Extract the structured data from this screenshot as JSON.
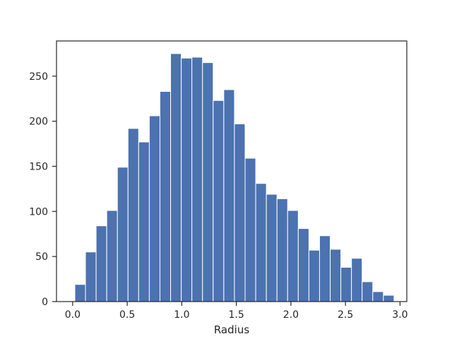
{
  "chart_data": {
    "type": "bar",
    "xlabel": "Radius",
    "ylabel": "",
    "xlim": [
      -0.148,
      3.062
    ],
    "ylim": [
      0,
      289
    ],
    "x_ticks": [
      0.0,
      0.5,
      1.0,
      1.5,
      2.0,
      2.5,
      3.0
    ],
    "x_tick_labels": [
      "0.0",
      "0.5",
      "1.0",
      "1.5",
      "2.0",
      "2.5",
      "3.0"
    ],
    "y_ticks": [
      0,
      50,
      100,
      150,
      200,
      250
    ],
    "y_tick_labels": [
      "0",
      "50",
      "100",
      "150",
      "200",
      "250"
    ],
    "bin_edges": [
      0.02,
      0.1175,
      0.215,
      0.3125,
      0.41,
      0.5075,
      0.605,
      0.7025,
      0.8,
      0.8975,
      0.995,
      1.0925,
      1.19,
      1.2875,
      1.385,
      1.4825,
      1.58,
      1.6775,
      1.775,
      1.8725,
      1.97,
      2.0675,
      2.165,
      2.2625,
      2.36,
      2.4575,
      2.555,
      2.6525,
      2.75,
      2.8475,
      2.945
    ],
    "values": [
      19,
      55,
      84,
      101,
      149,
      192,
      177,
      206,
      233,
      275,
      270,
      271,
      265,
      223,
      235,
      197,
      159,
      131,
      119,
      114,
      101,
      81,
      57,
      73,
      58,
      38,
      48,
      22,
      11,
      7
    ],
    "bar_color": "#4c72b0",
    "grid": false
  }
}
